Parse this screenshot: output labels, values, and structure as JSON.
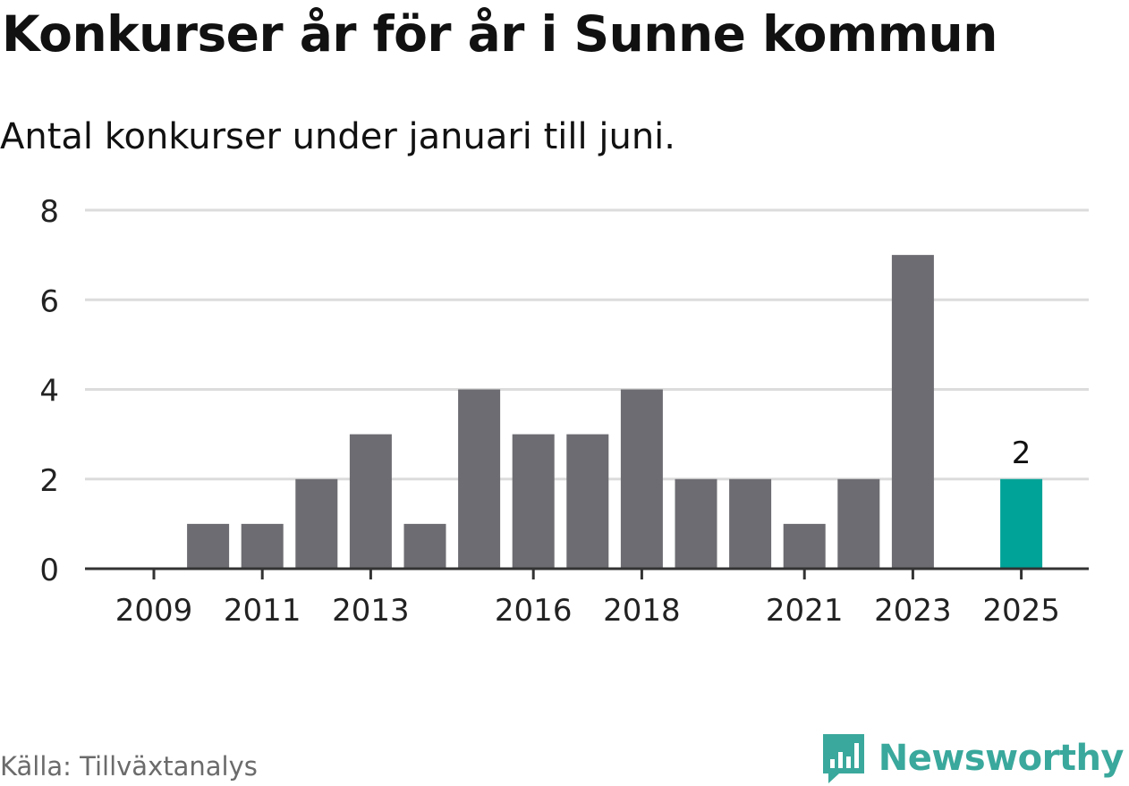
{
  "header": {
    "title": "Konkurser år för år i Sunne kommun",
    "subtitle": "Antal konkurser under januari till juni."
  },
  "footer": {
    "source": "Källa: Tillväxtanalys",
    "brand": "Newsworthy",
    "brand_icon": "bar-chart-speech-bubble-icon"
  },
  "colors": {
    "bar": "#6d6c72",
    "highlight": "#00a398",
    "grid": "#dcdcdc",
    "axis": "#333333",
    "brand": "#3aa89c"
  },
  "chart_data": {
    "type": "bar",
    "categories": [
      "2009",
      "2010",
      "2011",
      "2012",
      "2013",
      "2014",
      "2015",
      "2016",
      "2017",
      "2018",
      "2019",
      "2020",
      "2021",
      "2022",
      "2023",
      "2024",
      "2025"
    ],
    "values": [
      0,
      1,
      1,
      2,
      3,
      1,
      4,
      3,
      3,
      4,
      2,
      2,
      1,
      2,
      7,
      0,
      2
    ],
    "x_tick_labels": [
      "2009",
      "2011",
      "2013",
      "2016",
      "2018",
      "2021",
      "2023",
      "2025"
    ],
    "y_ticks": [
      0,
      2,
      4,
      6,
      8
    ],
    "ylim": [
      0,
      8
    ],
    "highlight_category": "2025",
    "data_labels": [
      {
        "category": "2025",
        "text": "2"
      }
    ],
    "grid": true,
    "legend": "none",
    "title": "Konkurser år för år i Sunne kommun",
    "subtitle": "Antal konkurser under januari till juni.",
    "xlabel": "",
    "ylabel": ""
  }
}
